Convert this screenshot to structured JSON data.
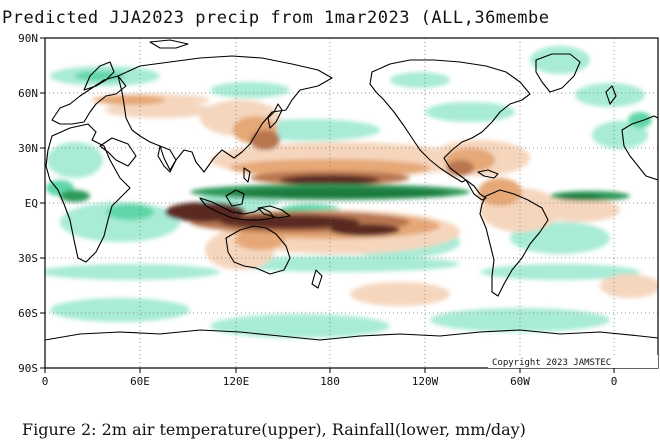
{
  "map": {
    "title": "Predicted JJA2023 precip from 1mar2023 (ALL,36membe",
    "lat_labels": [
      "90N",
      "60N",
      "30N",
      "EQ",
      "30S",
      "60S",
      "90S"
    ],
    "lon_labels": [
      "0",
      "60E",
      "120E",
      "180",
      "120W",
      "60W",
      "0"
    ],
    "copyright": "Copyright 2023 JAMSTEC",
    "colors": {
      "wet_light": "#a8ebd6",
      "wet_mid": "#5fd6a8",
      "wet_strong": "#2e9a5c",
      "wet_max": "#1f7a3c",
      "dry_light": "#f5d6bd",
      "dry_mid": "#e6a877",
      "dry_strong": "#b8764f",
      "dry_max": "#5a2a20",
      "coast": "#000000",
      "grid": "#777777"
    }
  },
  "caption": "Figure 2: 2m air temperature(upper), Rainfall(lower, mm/day)"
}
